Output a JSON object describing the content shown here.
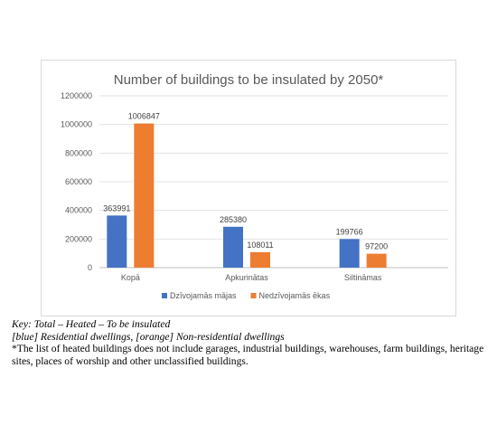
{
  "chart_data": {
    "type": "bar",
    "title": "Number of buildings to be insulated by 2050*",
    "categories": [
      "Kopā",
      "Apkurinātas",
      "Siltināmas"
    ],
    "series": [
      {
        "name": "Dzīvojamās mājas",
        "color": "#4472c4",
        "values": [
          363991,
          285380,
          199766
        ]
      },
      {
        "name": "Nedzīvojamās ēkas",
        "color": "#ed7d31",
        "values": [
          1006847,
          108011,
          97200
        ]
      }
    ],
    "ylim": [
      0,
      1200000
    ],
    "yticks": [
      "0",
      "200000",
      "400000",
      "600000",
      "800000",
      "1000000",
      "1200000"
    ],
    "grid": true,
    "legend": "bottom"
  },
  "caption": {
    "key_line": "Key: Total – Heated – To be insulated",
    "colors_line": "[blue] Residential dwellings, [orange] Non-residential dwellings",
    "note": "*The list of heated buildings does not include garages, industrial buildings, warehouses, farm buildings, heritage sites, places of worship and other unclassified buildings."
  }
}
